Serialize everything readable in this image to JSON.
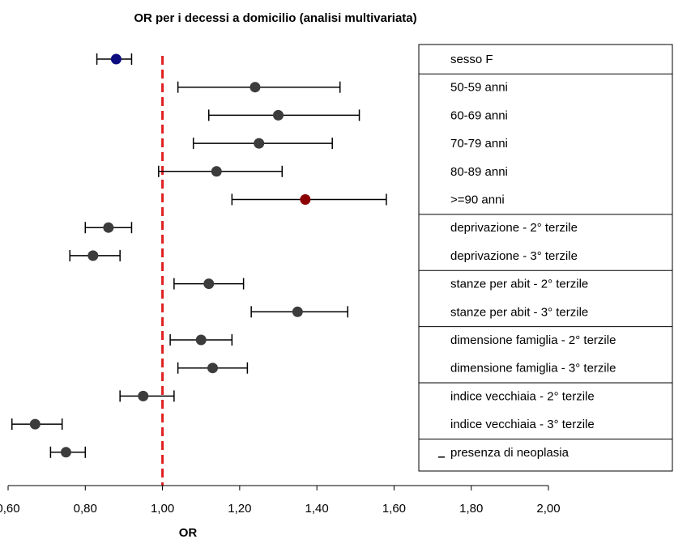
{
  "chart_data": {
    "type": "scatter",
    "subtype": "forest-plot",
    "title": "OR per i decessi a domicilio (analisi multivariata)",
    "xlabel": "OR",
    "xlim": [
      0.6,
      2.0
    ],
    "x_ticks": [
      "0,60",
      "0,80",
      "1,00",
      "1,20",
      "1,40",
      "1,60",
      "1,80",
      "2,00"
    ],
    "x_tick_values": [
      0.6,
      0.8,
      1.0,
      1.2,
      1.4,
      1.6,
      1.8,
      2.0
    ],
    "reference_line": {
      "value": 1.0,
      "color": "#e02020",
      "style": "dashed"
    },
    "grid": false,
    "legend_position": "right",
    "point_colors": {
      "navy": "#0d0d80",
      "dark": "#3c3c3c",
      "red": "#8b0000"
    },
    "rows": [
      {
        "label": "sesso F",
        "or": 0.88,
        "low": 0.83,
        "high": 0.92,
        "color": "navy"
      },
      {
        "label": "50-59 anni",
        "or": 1.24,
        "low": 1.04,
        "high": 1.46,
        "color": "dark"
      },
      {
        "label": "60-69 anni",
        "or": 1.3,
        "low": 1.12,
        "high": 1.51,
        "color": "dark"
      },
      {
        "label": "70-79 anni",
        "or": 1.25,
        "low": 1.08,
        "high": 1.44,
        "color": "dark"
      },
      {
        "label": "80-89 anni",
        "or": 1.14,
        "low": 0.99,
        "high": 1.31,
        "color": "dark"
      },
      {
        "label": ">=90 anni",
        "or": 1.37,
        "low": 1.18,
        "high": 1.58,
        "color": "red"
      },
      {
        "label": "deprivazione - 2° terzile",
        "or": 0.86,
        "low": 0.8,
        "high": 0.92,
        "color": "dark"
      },
      {
        "label": "deprivazione - 3° terzile",
        "or": 0.82,
        "low": 0.76,
        "high": 0.89,
        "color": "dark"
      },
      {
        "label": "stanze per abit - 2° terzile",
        "or": 1.12,
        "low": 1.03,
        "high": 1.21,
        "color": "dark"
      },
      {
        "label": "stanze per abit - 3° terzile",
        "or": 1.35,
        "low": 1.23,
        "high": 1.48,
        "color": "dark"
      },
      {
        "label": "dimensione famiglia - 2° terzile",
        "or": 1.1,
        "low": 1.02,
        "high": 1.18,
        "color": "dark"
      },
      {
        "label": "dimensione famiglia - 3° terzile",
        "or": 1.13,
        "low": 1.04,
        "high": 1.22,
        "color": "dark"
      },
      {
        "label": "indice vecchiaia - 2° terzile",
        "or": 0.95,
        "low": 0.89,
        "high": 1.03,
        "color": "dark"
      },
      {
        "label": "indice vecchiaia - 3° terzile",
        "or": 0.67,
        "low": 0.61,
        "high": 0.74,
        "color": "dark"
      },
      {
        "label": "presenza di neoplasia",
        "or": 0.75,
        "low": 0.71,
        "high": 0.8,
        "color": "dark"
      }
    ],
    "group_dividers_after": [
      0,
      5,
      7,
      9,
      11,
      13
    ]
  }
}
